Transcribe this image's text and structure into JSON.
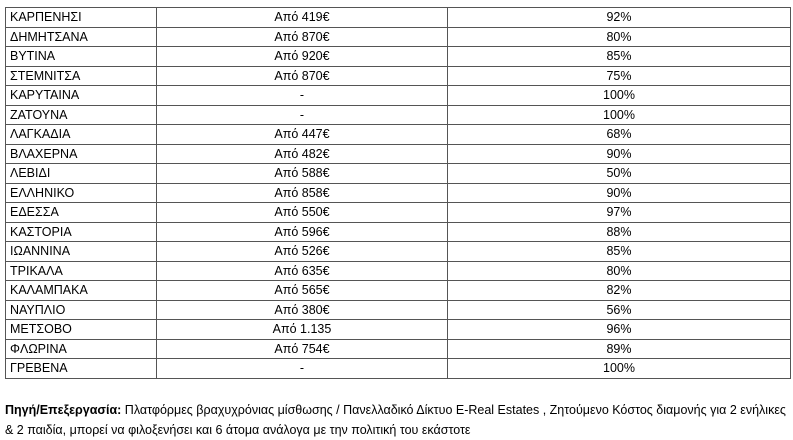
{
  "rows": [
    [
      "ΚΑΡΠΕΝΗΣΙ",
      "Από 419€",
      "92%"
    ],
    [
      "ΔΗΜΗΤΣΑΝΑ",
      "Από 870€",
      "80%"
    ],
    [
      "ΒΥΤΙΝΑ",
      "Από 920€",
      "85%"
    ],
    [
      "ΣΤΕΜΝΙΤΣΑ",
      "Από 870€",
      "75%"
    ],
    [
      "ΚΑΡΥΤΑΙΝΑ",
      "-",
      "100%"
    ],
    [
      "ΖΑΤΟΥΝΑ",
      "-",
      "100%"
    ],
    [
      "ΛΑΓΚΑΔΙΑ",
      "Από 447€",
      "68%"
    ],
    [
      "ΒΛΑΧΕΡΝΑ",
      "Από 482€",
      "90%"
    ],
    [
      "ΛΕΒΙΔΙ",
      "Από 588€",
      "50%"
    ],
    [
      "ΕΛΛΗΝΙΚΟ",
      "Από 858€",
      "90%"
    ],
    [
      "ΕΔΕΣΣΑ",
      "Από 550€",
      "97%"
    ],
    [
      "ΚΑΣΤΟΡΙΑ",
      "Από 596€",
      "88%"
    ],
    [
      "ΙΩΑΝΝΙΝΑ",
      "Από 526€",
      "85%"
    ],
    [
      "ΤΡΙΚΑΛΑ",
      "Από 635€",
      "80%"
    ],
    [
      "ΚΑΛΑΜΠΑΚΑ",
      "Από 565€",
      "82%"
    ],
    [
      "ΝΑΥΠΛΙΟ",
      "Από 380€",
      "56%"
    ],
    [
      "ΜΕΤΣΟΒΟ",
      "Από 1.135",
      "96%"
    ],
    [
      "ΦΛΩΡΙΝΑ",
      "Από 754€",
      "89%"
    ],
    [
      "ΓΡΕΒΕΝΑ",
      "-",
      "100%"
    ]
  ],
  "note": {
    "label": "Πηγή/Επεξεργασία:",
    "text": " Πλατφόρμες βραχυχρόνιας μίσθωσης / Πανελλαδικό Δίκτυο E-Real Estates , Ζητούμενο Κόστος διαμονής για 2 ενήλικες & 2 παιδία, μπορεί να φιλοξενήσει και 6 άτομα ανάλογα με την πολιτική του εκάστοτε"
  }
}
